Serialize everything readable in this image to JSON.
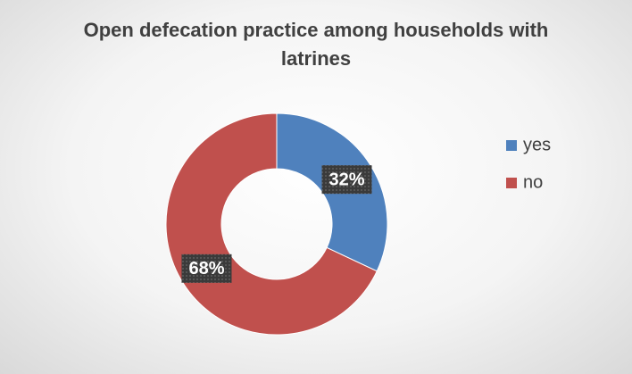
{
  "chart_data": {
    "type": "donut",
    "title": "Open defecation practice among households with latrines",
    "categories": [
      "yes",
      "no"
    ],
    "values": [
      32,
      68
    ],
    "value_labels": [
      "32%",
      "68%"
    ],
    "colors": [
      "#4f81bd",
      "#c0504d"
    ],
    "legend": "right"
  }
}
